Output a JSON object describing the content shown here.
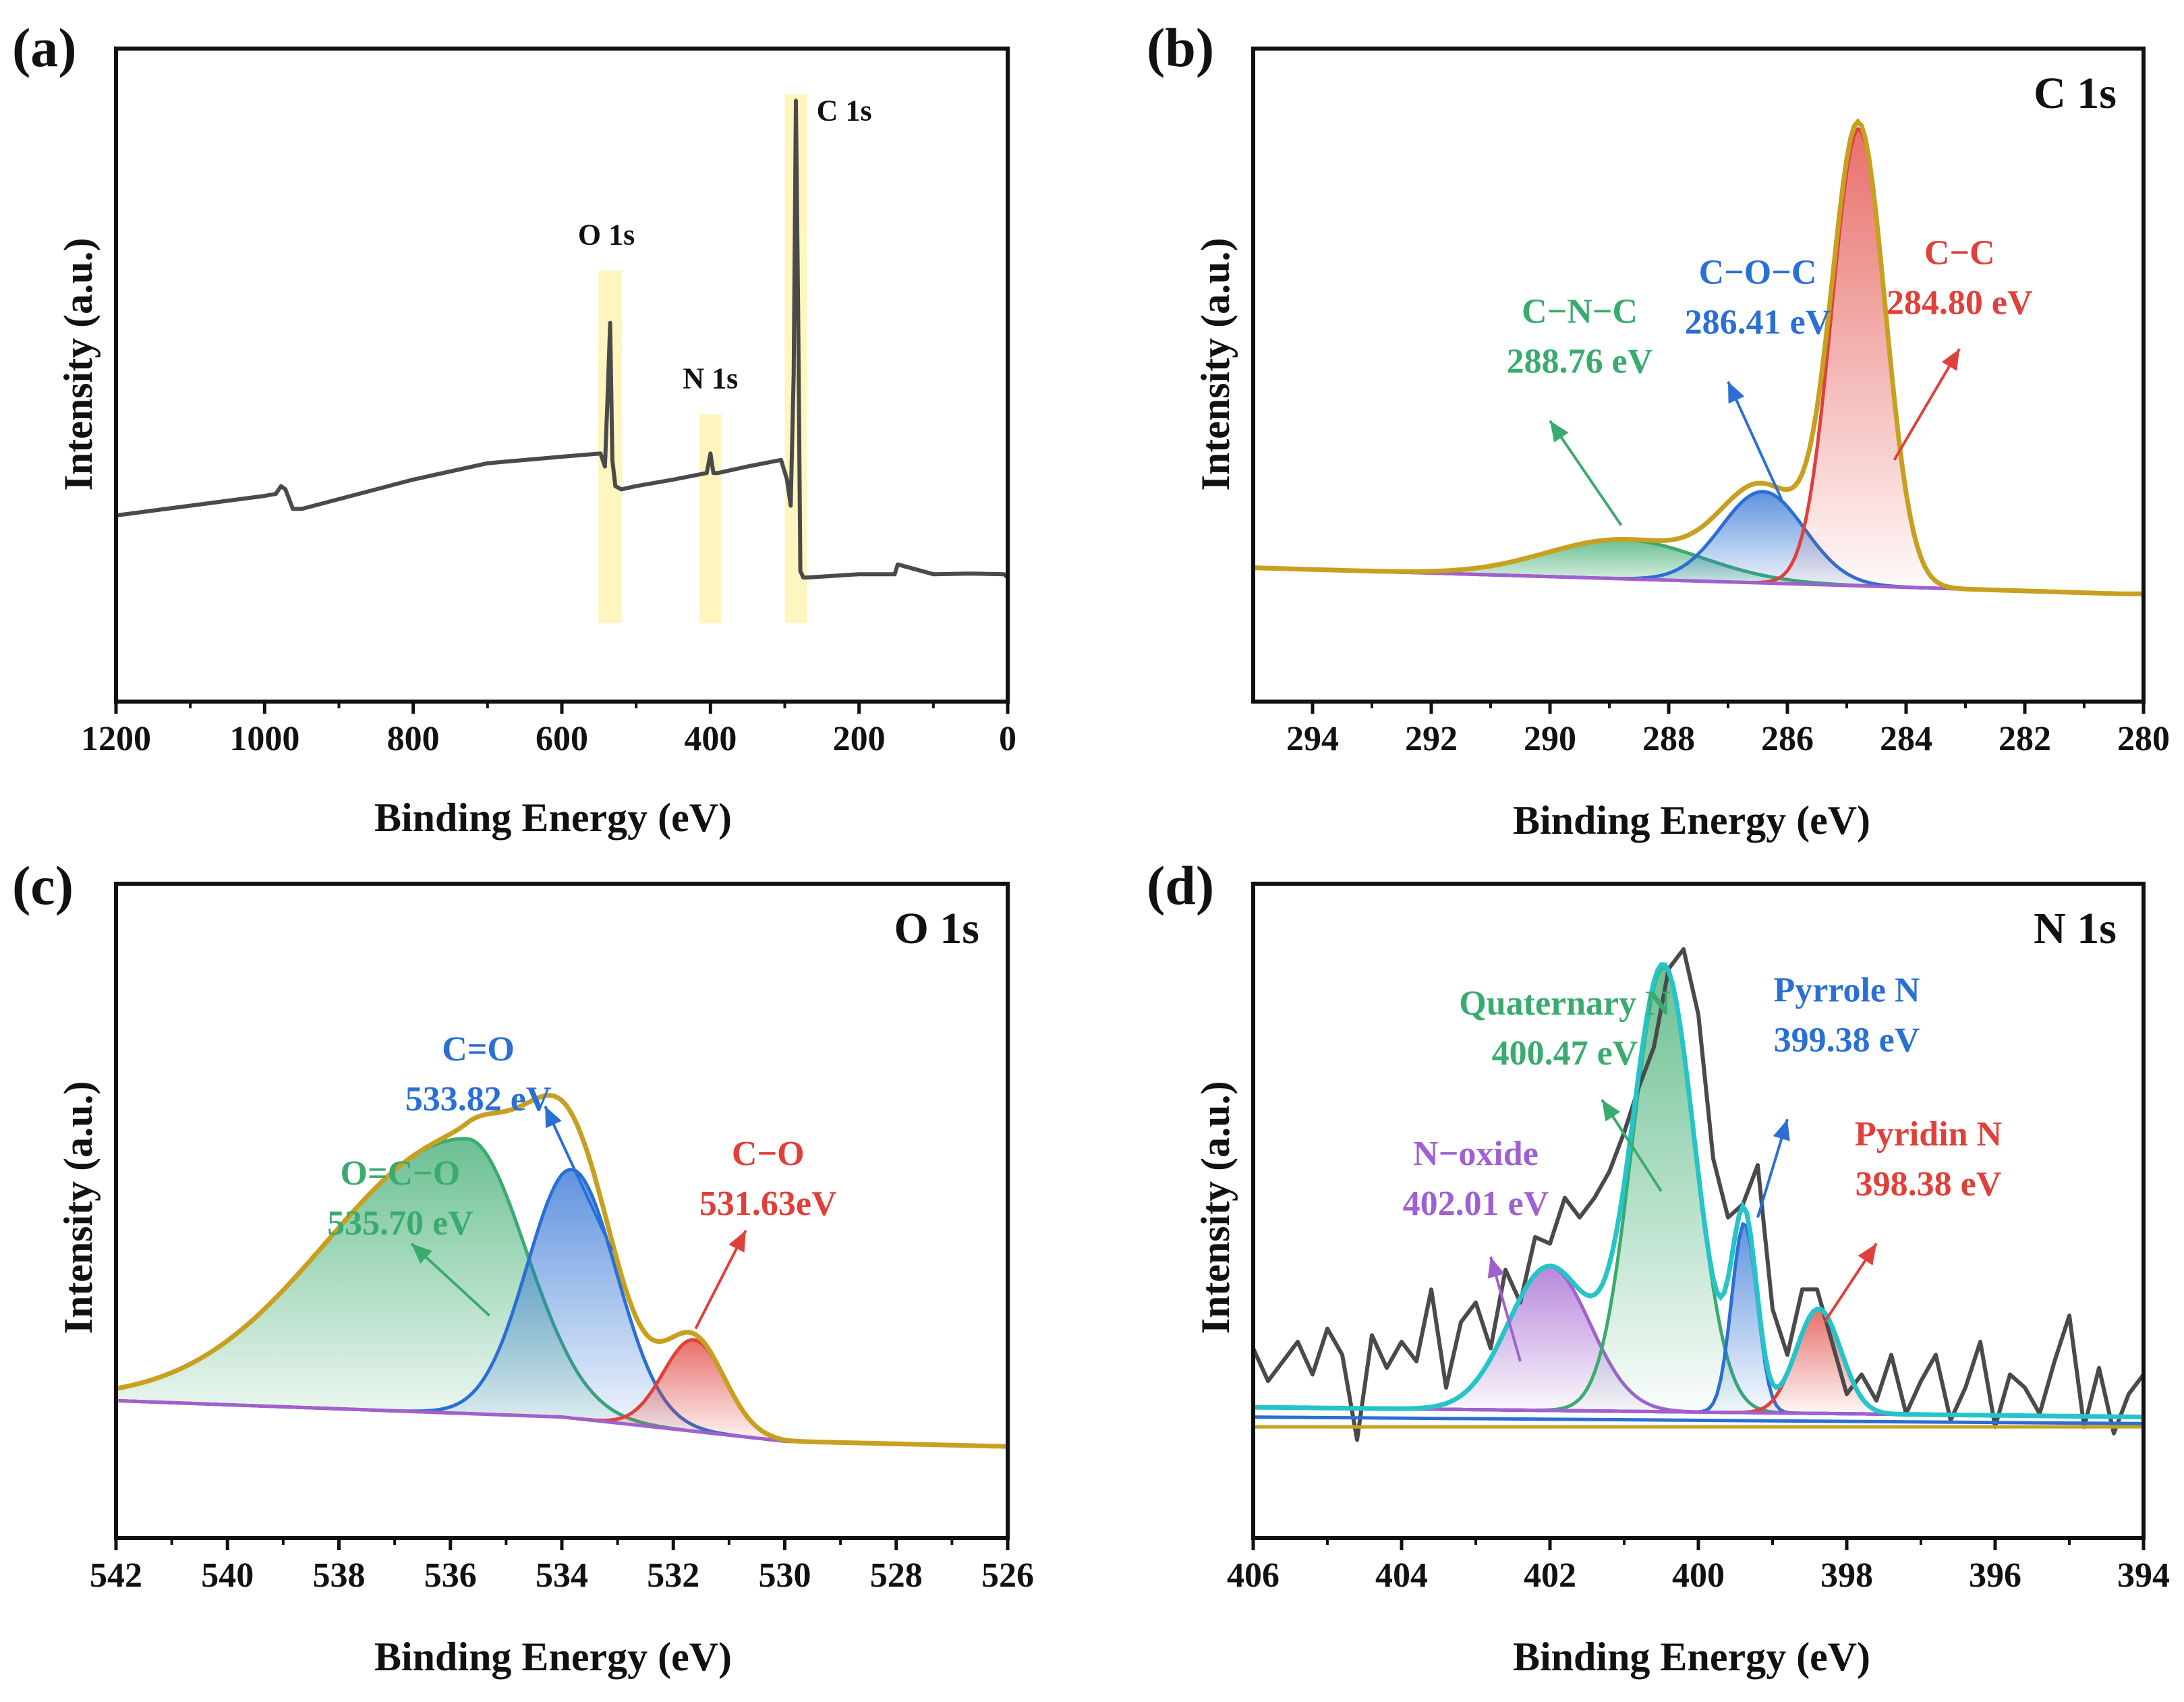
{
  "chart_data": [
    {
      "type": "line",
      "panel_label": "(a)",
      "xlabel": "Binding Energy (eV)",
      "ylabel": "Intensity (a.u.)",
      "xlim": [
        1200,
        0
      ],
      "xticks": [
        "1200",
        "1000",
        "800",
        "600",
        "400",
        "200",
        "0"
      ],
      "tick_values": [
        1200,
        1000,
        800,
        600,
        400,
        200,
        0
      ],
      "ylim": [
        0,
        100
      ],
      "highlight_bands": [
        {
          "center": 535,
          "width": 32,
          "top": 66
        },
        {
          "center": 400,
          "width": 30,
          "top": 44
        },
        {
          "center": 285,
          "width": 30,
          "top": 93
        }
      ],
      "peak_labels": [
        {
          "text": "O 1s",
          "x": 540,
          "y": 70
        },
        {
          "text": "N 1s",
          "x": 400,
          "y": 48
        },
        {
          "text": "C 1s",
          "x": 220,
          "y": 89
        }
      ],
      "series": [
        {
          "name": "Survey",
          "color": "#4a4a4a",
          "x": [
            1200,
            1100,
            1000,
            985,
            978,
            972,
            962,
            950,
            900,
            800,
            700,
            600,
            548,
            542,
            538,
            535,
            532,
            528,
            520,
            500,
            450,
            405,
            400,
            396,
            390,
            350,
            305,
            297,
            292,
            288,
            285,
            282,
            279,
            275,
            270,
            200,
            152,
            148,
            100,
            50,
            5,
            0
          ],
          "y": [
            28.5,
            30,
            31.5,
            31.8,
            33,
            32.5,
            29.5,
            29.5,
            31,
            34,
            36.5,
            37.5,
            38,
            36,
            48,
            58,
            37,
            33,
            32.5,
            33,
            34,
            35,
            38,
            35,
            35,
            36,
            37,
            34,
            30,
            50,
            92,
            60,
            20,
            19,
            19,
            19.5,
            19.5,
            21,
            19.5,
            19.6,
            19.5,
            19
          ]
        }
      ]
    },
    {
      "type": "line",
      "panel_label": "(b)",
      "element_label": "C 1s",
      "xlabel": "Binding Energy (eV)",
      "ylabel": "Intensity (a.u.)",
      "xlim": [
        295,
        280
      ],
      "xticks": [
        "294",
        "292",
        "290",
        "288",
        "286",
        "284",
        "282",
        "280"
      ],
      "tick_values": [
        294,
        292,
        290,
        288,
        286,
        284,
        282,
        280
      ],
      "ylim": [
        0,
        100
      ],
      "series": [
        {
          "name": "Background",
          "color": "#a060d0",
          "x": [
            295,
            284,
            280.4
          ],
          "y": [
            20.5,
            17.5,
            16.5
          ]
        },
        {
          "name": "C−N−C",
          "color": "#3aab6e",
          "fill": "#3aab6e",
          "center": 288.76,
          "height": 6,
          "sigma": 1.3
        },
        {
          "name": "C−O−C",
          "color": "#2a6fd4",
          "fill": "#2a6fd4",
          "center": 286.41,
          "height": 14,
          "sigma": 0.7
        },
        {
          "name": "C−C",
          "color": "#e0403a",
          "fill": "#e0403a",
          "center": 284.8,
          "height": 70,
          "sigma": 0.45
        },
        {
          "name": "Envelope",
          "color": "#c8a020"
        }
      ],
      "annotations": [
        {
          "name": "C−N−C",
          "energy": "288.76 eV",
          "color": "#3aab6e",
          "label_x": 289.5,
          "label_y": 58,
          "arrow_from": [
            288.8,
            27
          ],
          "arrow_to": [
            290.0,
            43
          ]
        },
        {
          "name": "C−O−C",
          "energy": "286.41 eV",
          "color": "#2a6fd4",
          "label_x": 286.5,
          "label_y": 64,
          "arrow_from": [
            286.1,
            31
          ],
          "arrow_to": [
            287.0,
            49
          ]
        },
        {
          "name": "C−C",
          "energy": "284.80 eV",
          "color": "#e0403a",
          "label_x": 283.1,
          "label_y": 67,
          "arrow_from": [
            284.2,
            37
          ],
          "arrow_to": [
            283.1,
            54
          ]
        }
      ]
    },
    {
      "type": "line",
      "panel_label": "(c)",
      "element_label": "O 1s",
      "xlabel": "Binding Energy (eV)",
      "ylabel": "Intensity (a.u.)",
      "xlim": [
        542,
        526
      ],
      "xticks": [
        "542",
        "540",
        "538",
        "536",
        "534",
        "532",
        "530",
        "528",
        "526"
      ],
      "tick_values": [
        542,
        540,
        538,
        536,
        534,
        532,
        530,
        528,
        526
      ],
      "ylim": [
        0,
        100
      ],
      "series": [
        {
          "name": "Background",
          "color": "#a060d0",
          "x": [
            542,
            534,
            530,
            526
          ],
          "y": [
            21,
            18.5,
            14.8,
            14
          ]
        },
        {
          "name": "O=C−O",
          "color": "#3aab6e",
          "fill": "#3aab6e",
          "center": 535.7,
          "height": 42,
          "sigma": 1.05,
          "skew": 2.4
        },
        {
          "name": "C=O",
          "color": "#2a6fd4",
          "fill": "#2a6fd4",
          "center": 533.82,
          "height": 38,
          "sigma": 0.8
        },
        {
          "name": "C−O",
          "color": "#e0403a",
          "fill": "#e0403a",
          "center": 531.63,
          "height": 14,
          "sigma": 0.55
        },
        {
          "name": "Envelope",
          "color": "#c8a020"
        }
      ],
      "annotations": [
        {
          "name": "O=C−O",
          "energy": "535.70 eV",
          "color": "#3aab6e",
          "label_x": 536.9,
          "label_y": 54,
          "arrow_from": [
            535.3,
            34
          ],
          "arrow_to": [
            536.7,
            45
          ]
        },
        {
          "name": "C=O",
          "energy": "533.82 eV",
          "color": "#2a6fd4",
          "label_x": 535.5,
          "label_y": 73,
          "arrow_from": [
            533.1,
            44
          ],
          "arrow_to": [
            534.3,
            66
          ]
        },
        {
          "name": "C−O",
          "energy": "531.63eV",
          "color": "#e0403a",
          "label_x": 530.3,
          "label_y": 57,
          "arrow_from": [
            531.6,
            32
          ],
          "arrow_to": [
            530.7,
            47
          ]
        }
      ]
    },
    {
      "type": "line",
      "panel_label": "(d)",
      "element_label": "N 1s",
      "xlabel": "Binding Energy (eV)",
      "ylabel": "Intensity (a.u.)",
      "xlim": [
        406,
        394
      ],
      "xticks": [
        "406",
        "404",
        "402",
        "400",
        "398",
        "396",
        "394"
      ],
      "tick_values": [
        406,
        404,
        402,
        400,
        398,
        396,
        394
      ],
      "ylim": [
        0,
        100
      ],
      "series": [
        {
          "name": "Raw",
          "color": "#4a4a4a",
          "x": [
            406,
            405.8,
            405.6,
            405.4,
            405.2,
            405,
            404.8,
            404.6,
            404.4,
            404.2,
            404,
            403.8,
            403.6,
            403.4,
            403.2,
            403,
            402.8,
            402.6,
            402.4,
            402.2,
            402,
            401.8,
            401.6,
            401.4,
            401.2,
            401,
            400.8,
            400.6,
            400.4,
            400.2,
            400,
            399.8,
            399.6,
            399.4,
            399.2,
            399,
            398.8,
            398.6,
            398.4,
            398.2,
            398,
            397.8,
            397.6,
            397.4,
            397.2,
            397,
            396.8,
            396.6,
            396.4,
            396.2,
            396,
            395.8,
            395.6,
            395.4,
            395.2,
            395,
            394.8,
            394.6,
            394.4,
            394.2,
            394
          ],
          "y": [
            29,
            24,
            27,
            30,
            25,
            32,
            28,
            15,
            31,
            26,
            30,
            27,
            38,
            23,
            33,
            36,
            29,
            41,
            36,
            46,
            45,
            52,
            49,
            52,
            56,
            62,
            69,
            75,
            87,
            90,
            80,
            58,
            49,
            51,
            57,
            35,
            28,
            38,
            38,
            30,
            22,
            25,
            21,
            28,
            19,
            24,
            28,
            18,
            23,
            30,
            17,
            25,
            23,
            19,
            27,
            34,
            17,
            26,
            16,
            22,
            25
          ]
        },
        {
          "name": "Background",
          "color": "#a060d0",
          "x": [
            406,
            394
          ],
          "y": [
            20,
            18.5
          ]
        },
        {
          "name": "Background-2",
          "color": "#2a6fd4",
          "x": [
            406,
            394
          ],
          "y": [
            18.5,
            17.5
          ]
        },
        {
          "name": "Background-3",
          "color": "#c8a020",
          "x": [
            406,
            394
          ],
          "y": [
            17,
            17
          ]
        },
        {
          "name": "N−oxide",
          "color": "#a060d0",
          "fill": "#a060d0",
          "center": 402.01,
          "height": 22,
          "sigma": 0.55
        },
        {
          "name": "Quaternary N",
          "color": "#3aab6e",
          "fill": "#3aab6e",
          "center": 400.47,
          "height": 68,
          "sigma": 0.42
        },
        {
          "name": "Pyrrole N",
          "color": "#2a6fd4",
          "fill": "#2a6fd4",
          "center": 399.38,
          "height": 29,
          "sigma": 0.17
        },
        {
          "name": "Pyridin N",
          "color": "#e0403a",
          "fill": "#e0403a",
          "center": 398.38,
          "height": 16,
          "sigma": 0.3
        },
        {
          "name": "Envelope",
          "color": "#26c4c8"
        }
      ],
      "annotations": [
        {
          "name": "N−oxide",
          "energy": "402.01 eV",
          "color": "#a060d0",
          "label_x": 403.0,
          "label_y": 57,
          "arrow_from": [
            402.4,
            27
          ],
          "arrow_to": [
            402.8,
            43
          ]
        },
        {
          "name": "Quaternary N",
          "energy": "400.47 eV",
          "color": "#3aab6e",
          "label_x": 401.8,
          "label_y": 80,
          "arrow_from": [
            400.5,
            53
          ],
          "arrow_to": [
            401.3,
            67
          ]
        },
        {
          "name": "Pyrrole N",
          "energy": "399.38 eV",
          "color": "#2a6fd4",
          "label_x": 398.0,
          "label_y": 82,
          "arrow_from": [
            399.2,
            49
          ],
          "arrow_to": [
            398.8,
            64
          ]
        },
        {
          "name": "Pyridin N",
          "energy": "398.38 eV",
          "color": "#e0403a",
          "label_x": 396.9,
          "label_y": 60,
          "arrow_from": [
            398.3,
            33
          ],
          "arrow_to": [
            397.6,
            45
          ]
        }
      ]
    }
  ]
}
